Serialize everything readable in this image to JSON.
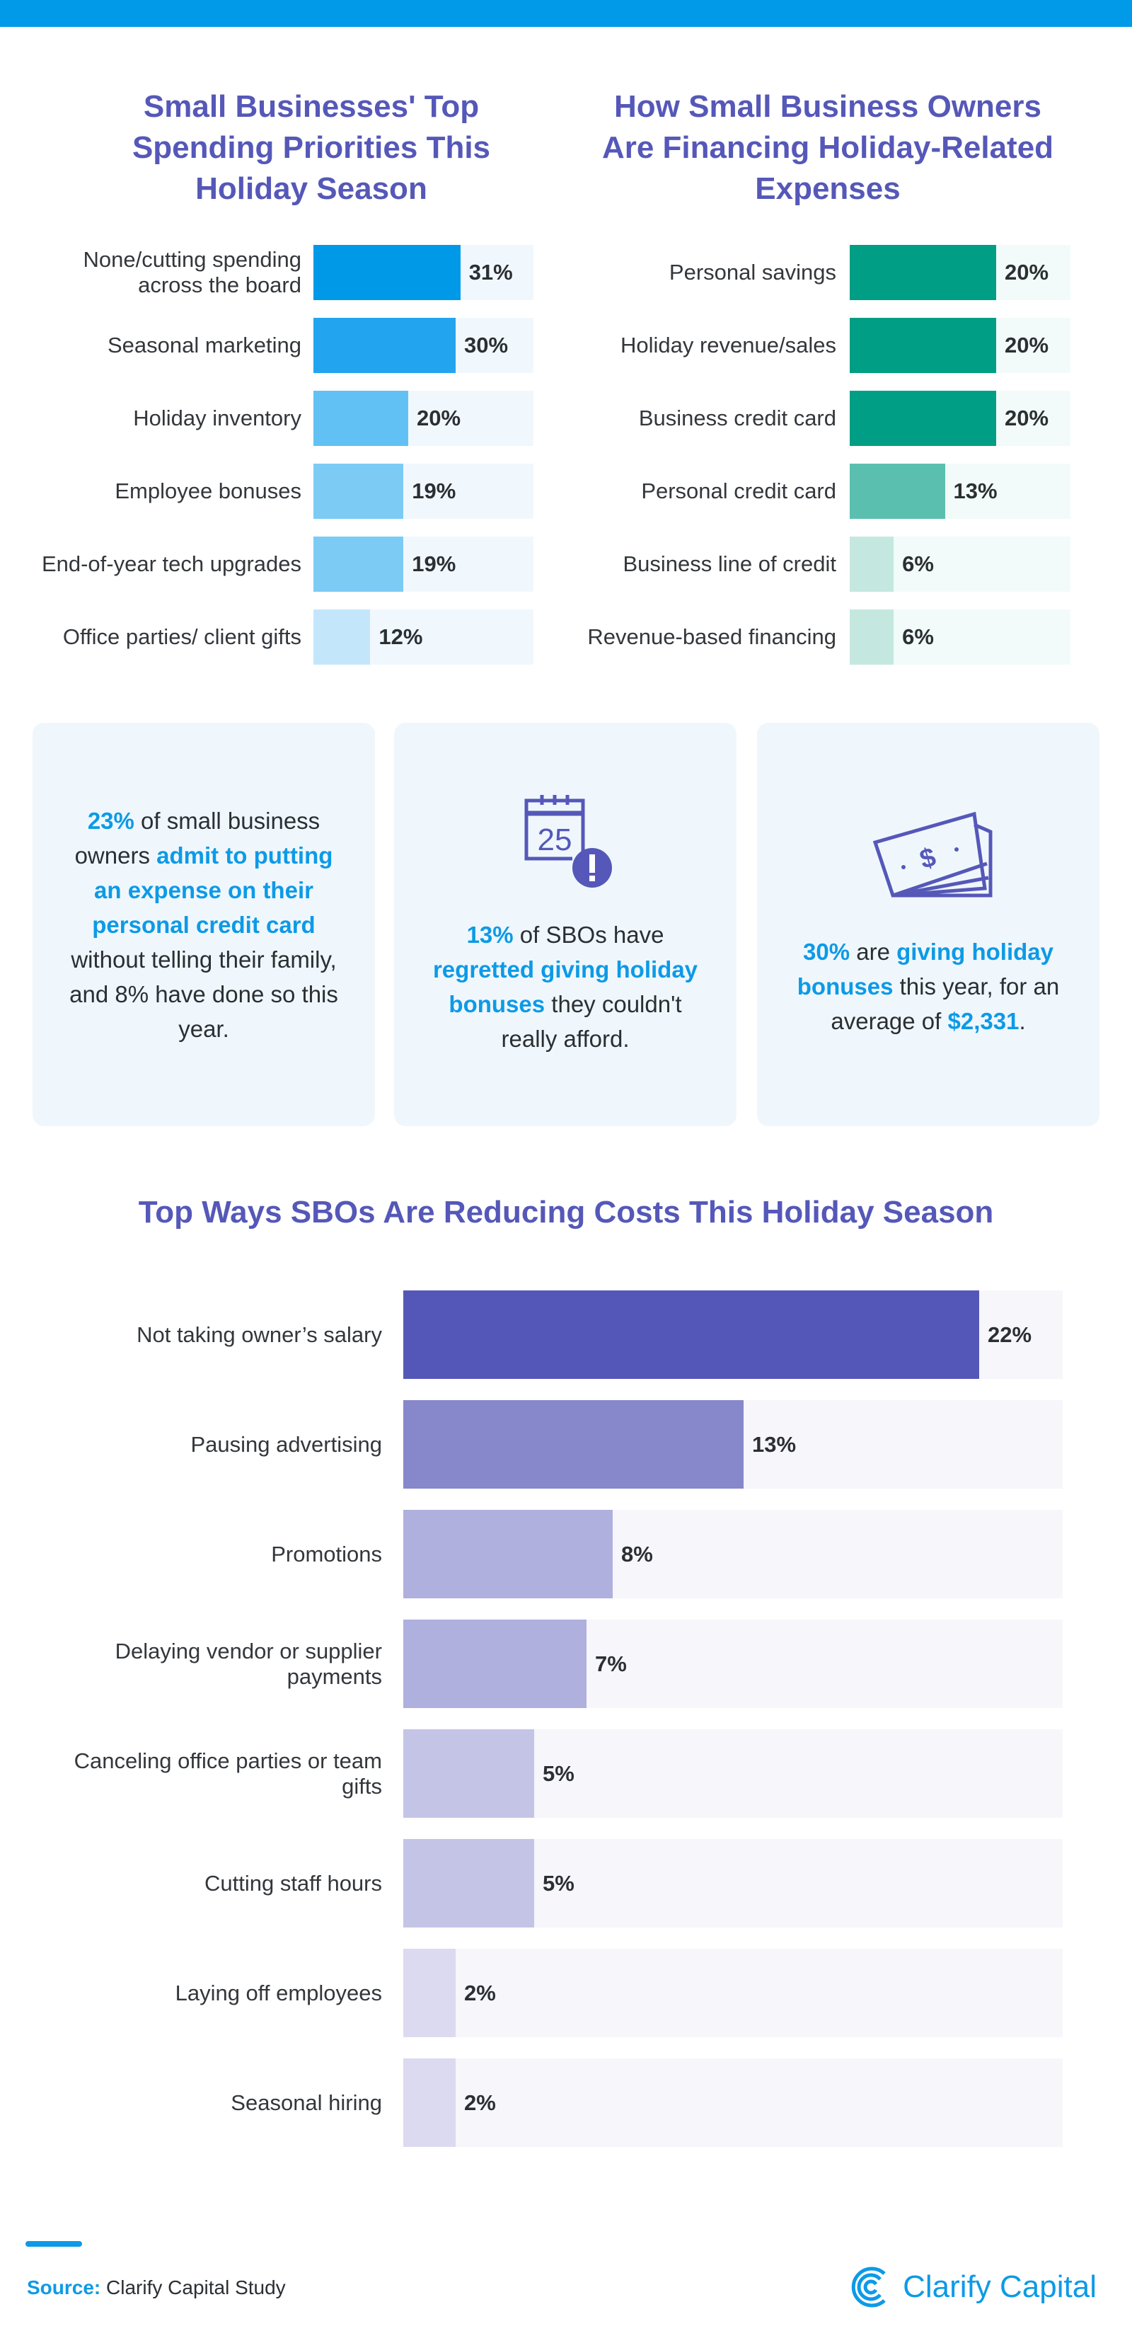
{
  "colors": {
    "accent": "#009ae8",
    "title": "#5558b8"
  },
  "chart_data": [
    {
      "type": "bar",
      "orientation": "horizontal",
      "title": "Small Businesses' Top Spending Priorities This Holiday Season",
      "categories": [
        "None/cutting spending across the board",
        "Seasonal marketing",
        "Holiday inventory",
        "Employee bonuses",
        "End-of-year tech upgrades",
        "Office parties/ client gifts"
      ],
      "values": [
        31,
        30,
        20,
        19,
        19,
        12
      ],
      "labels": [
        "31%",
        "30%",
        "20%",
        "19%",
        "19%",
        "12%"
      ],
      "colors": [
        "#0099e8",
        "#22a5ee",
        "#62c1f4",
        "#7ccbf5",
        "#7ccbf5",
        "#c4e6fb"
      ],
      "track_color": "#f1f8fd"
    },
    {
      "type": "bar",
      "orientation": "horizontal",
      "title": "How Small Business Owners Are Financing Holiday-Related Expenses",
      "categories": [
        "Personal savings",
        "Holiday revenue/sales",
        "Business credit card",
        "Personal credit card",
        "Business line of credit",
        "Revenue-based financing"
      ],
      "values": [
        20,
        20,
        20,
        13,
        6,
        6
      ],
      "labels": [
        "20%",
        "20%",
        "20%",
        "13%",
        "6%",
        "6%"
      ],
      "colors": [
        "#009e84",
        "#009e84",
        "#009e84",
        "#5bbfb0",
        "#c4e8e0",
        "#c4e8e0"
      ],
      "track_color": "#f2fbf9"
    },
    {
      "type": "bar",
      "orientation": "horizontal",
      "title": "Top Ways SBOs Are Reducing Costs This Holiday Season",
      "categories": [
        "Not taking owner’s salary",
        "Pausing advertising",
        "Promotions",
        "Delaying vendor or supplier payments",
        "Canceling office parties or team gifts",
        "Cutting staff hours",
        "Laying off employees",
        "Seasonal hiring"
      ],
      "values": [
        22,
        13,
        8,
        7,
        5,
        5,
        2,
        2
      ],
      "labels": [
        "22%",
        "13%",
        "8%",
        "7%",
        "5%",
        "5%",
        "2%",
        "2%"
      ],
      "colors": [
        "#5557b8",
        "#8787cb",
        "#b0b0de",
        "#b0b0de",
        "#c4c4e7",
        "#c4c4e7",
        "#dcdaf0",
        "#dcdaf0"
      ],
      "track_color": "#f6f6fb"
    }
  ],
  "cards": [
    {
      "icon": "none",
      "parts": [
        [
          "23%",
          1
        ],
        [
          " of small business owners ",
          0
        ],
        [
          "admit to putting an expense on their personal credit card",
          1
        ],
        [
          " without telling their family, and 8% have done so this year.",
          0
        ]
      ]
    },
    {
      "icon": "calendar-alert-icon",
      "icon_text": "25",
      "parts": [
        [
          "13%",
          1
        ],
        [
          " of SBOs have ",
          0
        ],
        [
          "regretted giving holiday bonuses",
          1
        ],
        [
          " they couldn't really afford.",
          0
        ]
      ]
    },
    {
      "icon": "money-bills-icon",
      "parts": [
        [
          "30%",
          1
        ],
        [
          " are ",
          0
        ],
        [
          "giving holiday bonuses",
          1
        ],
        [
          " this year, for an average of ",
          0
        ],
        [
          "$2,331",
          1
        ],
        [
          ".",
          0
        ]
      ]
    }
  ],
  "footer": {
    "source_label": "Source:",
    "source_text": " Clarify Capital Study",
    "logo_text": "Clarify Capital"
  }
}
